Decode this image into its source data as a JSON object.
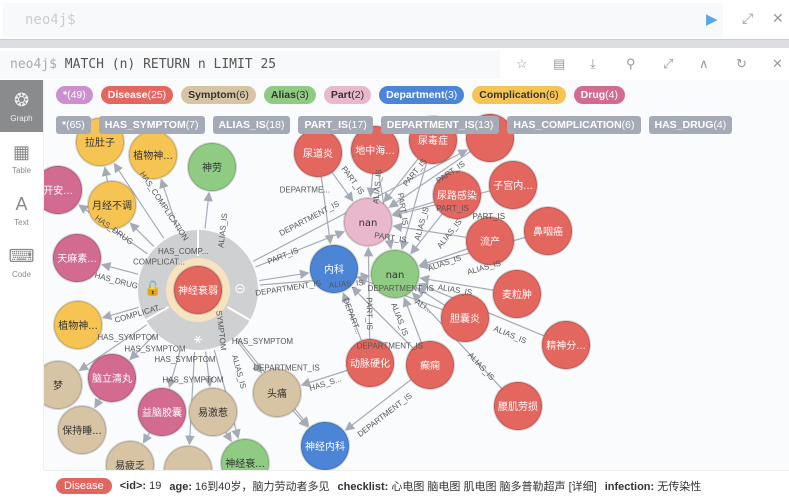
{
  "editor": {
    "placeholder": "neo4j$"
  },
  "frame": {
    "prompt": "neo4j$",
    "query": "MATCH (n) RETURN n LIMIT 25"
  },
  "sidebar": [
    {
      "label": "Graph",
      "icon": "graph-icon"
    },
    {
      "label": "Table",
      "icon": "table-icon"
    },
    {
      "label": "Text",
      "icon": "text-icon"
    },
    {
      "label": "Code",
      "icon": "code-icon"
    }
  ],
  "colors": {
    "Disease": "#e3665f",
    "Symptom": "#d7c4a4",
    "Alias": "#8fcb82",
    "Part": "#eab8cd",
    "Department": "#4c85d5",
    "Complication": "#f6c453",
    "Drug": "#d26b8f",
    "All": "#cc8fd0"
  },
  "node_labels": [
    {
      "name": "*",
      "count": "(49)",
      "type": "All"
    },
    {
      "name": "Disease",
      "count": "(25)",
      "type": "Disease"
    },
    {
      "name": "Symptom",
      "count": "(6)",
      "type": "Symptom"
    },
    {
      "name": "Alias",
      "count": "(3)",
      "type": "Alias"
    },
    {
      "name": "Part",
      "count": "(2)",
      "type": "Part"
    },
    {
      "name": "Department",
      "count": "(3)",
      "type": "Department"
    },
    {
      "name": "Complication",
      "count": "(6)",
      "type": "Complication"
    },
    {
      "name": "Drug",
      "count": "(4)",
      "type": "Drug"
    }
  ],
  "rel_types": [
    {
      "name": "*",
      "count": "(65)"
    },
    {
      "name": "HAS_SYMPTOM",
      "count": "(7)"
    },
    {
      "name": "ALIAS_IS",
      "count": "(18)"
    },
    {
      "name": "PART_IS",
      "count": "(17)"
    },
    {
      "name": "DEPARTMENT_IS",
      "count": "(13)"
    },
    {
      "name": "HAS_COMPLICATION",
      "count": "(6)"
    },
    {
      "name": "HAS_DRUG",
      "count": "(4)"
    }
  ],
  "nodes": [
    {
      "label": "神经衰弱",
      "type": "Disease"
    },
    {
      "label": "拉肚子",
      "type": "Complication"
    },
    {
      "label": "植物神...",
      "type": "Complication"
    },
    {
      "label": "神劳",
      "type": "Alias"
    },
    {
      "label": "开安...",
      "type": "Drug"
    },
    {
      "label": "月经不调",
      "type": "Complication"
    },
    {
      "label": "天麻素...",
      "type": "Drug"
    },
    {
      "label": "植物神...",
      "type": "Complication"
    },
    {
      "label": "梦",
      "type": "Symptom"
    },
    {
      "label": "脑立清丸",
      "type": "Drug"
    },
    {
      "label": "益脑胶囊",
      "type": "Drug"
    },
    {
      "label": "保持睡...",
      "type": "Symptom"
    },
    {
      "label": "易疲乏",
      "type": "Symptom"
    },
    {
      "label": "",
      "type": "Symptom"
    },
    {
      "label": "易激惹",
      "type": "Symptom"
    },
    {
      "label": "神经衰...",
      "type": "Alias"
    },
    {
      "label": "头痛",
      "type": "Symptom"
    },
    {
      "label": "神经内科",
      "type": "Department"
    },
    {
      "label": "尿道炎",
      "type": "Disease"
    },
    {
      "label": "地中海...",
      "type": "Disease"
    },
    {
      "label": "尿毒症",
      "type": "Disease"
    },
    {
      "label": "",
      "type": "Disease"
    },
    {
      "label": "nan",
      "type": "Part"
    },
    {
      "label": "尿路感染",
      "type": "Disease"
    },
    {
      "label": "子宫内...",
      "type": "Disease"
    },
    {
      "label": "内科",
      "type": "Department"
    },
    {
      "label": "nan",
      "type": "Alias"
    },
    {
      "label": "流产",
      "type": "Disease"
    },
    {
      "label": "鼻咽癌",
      "type": "Disease"
    },
    {
      "label": "麦粒肿",
      "type": "Disease"
    },
    {
      "label": "胆囊炎",
      "type": "Disease"
    },
    {
      "label": "精神分...",
      "type": "Disease"
    },
    {
      "label": "动脉硬化",
      "type": "Disease"
    },
    {
      "label": "癫痫",
      "type": "Disease"
    },
    {
      "label": "腰肌劳损",
      "type": "Disease"
    }
  ],
  "edges": [
    [
      0,
      1,
      "HAS_COMPLICATION"
    ],
    [
      0,
      2,
      "HAS_COMP..."
    ],
    [
      0,
      3,
      "ALIAS_IS"
    ],
    [
      0,
      4,
      "HAS_DRUG"
    ],
    [
      0,
      5,
      "COMPLICAT..."
    ],
    [
      0,
      6,
      "HAS_DRUG"
    ],
    [
      0,
      7,
      "COMPLICAT..."
    ],
    [
      0,
      8,
      "HAS_SYMPTOM"
    ],
    [
      0,
      9,
      "HAS_SYMPTOM"
    ],
    [
      0,
      10,
      "HAS_SYMPTOM"
    ],
    [
      0,
      13,
      "HAS_SYMPTOM"
    ],
    [
      0,
      14,
      "SYMPTOM"
    ],
    [
      0,
      15,
      "ALIAS_IS"
    ],
    [
      0,
      16,
      "HAS_SYMPTOM"
    ],
    [
      0,
      17,
      "DEPARTMENT_IS"
    ],
    [
      0,
      22,
      "PART_IS"
    ],
    [
      0,
      25,
      "DEPARTMENT_IS"
    ],
    [
      0,
      26,
      "ALIAS_IS"
    ],
    [
      0,
      21,
      "DEPARTMENT_IS"
    ],
    [
      18,
      22,
      "PART_IS"
    ],
    [
      18,
      25,
      "DEPARTME..."
    ],
    [
      19,
      22,
      "ALIAS_IS"
    ],
    [
      19,
      26,
      "PART_IS"
    ],
    [
      20,
      22,
      "PART_IS"
    ],
    [
      20,
      26,
      "ALIAS_IS"
    ],
    [
      21,
      22,
      "PART_IS"
    ],
    [
      23,
      22,
      "PART_IS"
    ],
    [
      23,
      26,
      "ALIAS_IS"
    ],
    [
      24,
      22,
      "PART_IS"
    ],
    [
      27,
      22,
      "PART_IS"
    ],
    [
      27,
      26,
      "ALIAS_IS"
    ],
    [
      28,
      26,
      "ALIAS_IS"
    ],
    [
      29,
      26,
      "ALIAS_IS"
    ],
    [
      30,
      26,
      "ALI..."
    ],
    [
      30,
      25,
      "DEPARTMENT_IS"
    ],
    [
      31,
      26,
      "ALIAS_IS"
    ],
    [
      32,
      25,
      "DEPART..."
    ],
    [
      32,
      22,
      "PART_IS"
    ],
    [
      32,
      16,
      "HAS_S..."
    ],
    [
      33,
      26,
      "ALIAS_IS"
    ],
    [
      33,
      25,
      "DEPARTMENT_IS"
    ],
    [
      33,
      17,
      "DEPARTMENT_IS"
    ],
    [
      34,
      26,
      "ALIAS_IS"
    ],
    [
      16,
      17,
      ""
    ],
    [
      14,
      15,
      ""
    ],
    [
      9,
      11,
      ""
    ],
    [
      10,
      12,
      ""
    ],
    [
      5,
      1,
      ""
    ]
  ],
  "details": {
    "type": "Disease",
    "fields": [
      {
        "key": "<id>:",
        "value": "19"
      },
      {
        "key": "age:",
        "value": "16到40岁，脑力劳动者多见"
      },
      {
        "key": "checklist:",
        "value": "心电图 脑电图 肌电图 脑多普勒超声 [详细]"
      },
      {
        "key": "infection:",
        "value": "无传染性"
      }
    ]
  }
}
